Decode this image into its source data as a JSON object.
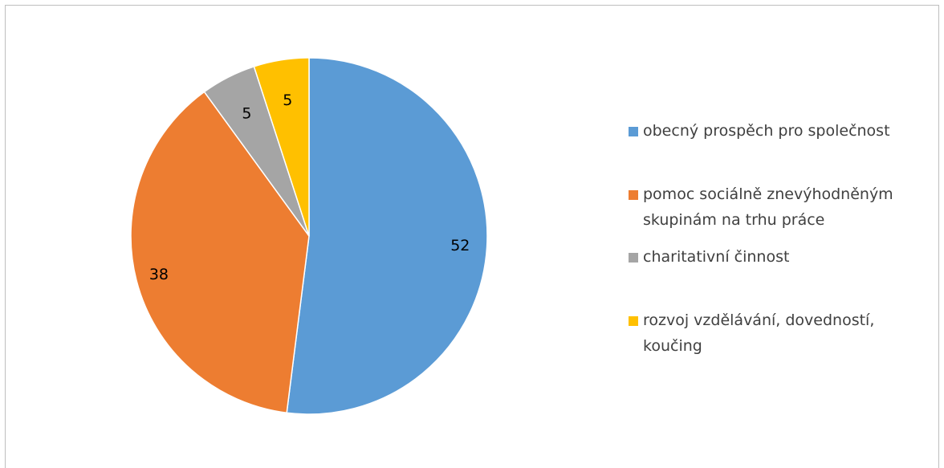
{
  "chart_data": {
    "type": "pie",
    "categories": [
      "obecný prospěch pro společnost",
      "pomoc sociálně znevýhodněným skupinám na trhu práce",
      "charitativní činnost",
      "rozvoj vzdělávání, dovedností, koučing"
    ],
    "values": [
      52,
      38,
      5,
      5
    ],
    "data_labels": [
      "52",
      "38",
      "5",
      "5"
    ],
    "colors": [
      "#5b9bd5",
      "#ed7d31",
      "#a5a5a5",
      "#ffc000"
    ],
    "legend_position": "right",
    "start_angle": "12 o'clock, clockwise"
  }
}
